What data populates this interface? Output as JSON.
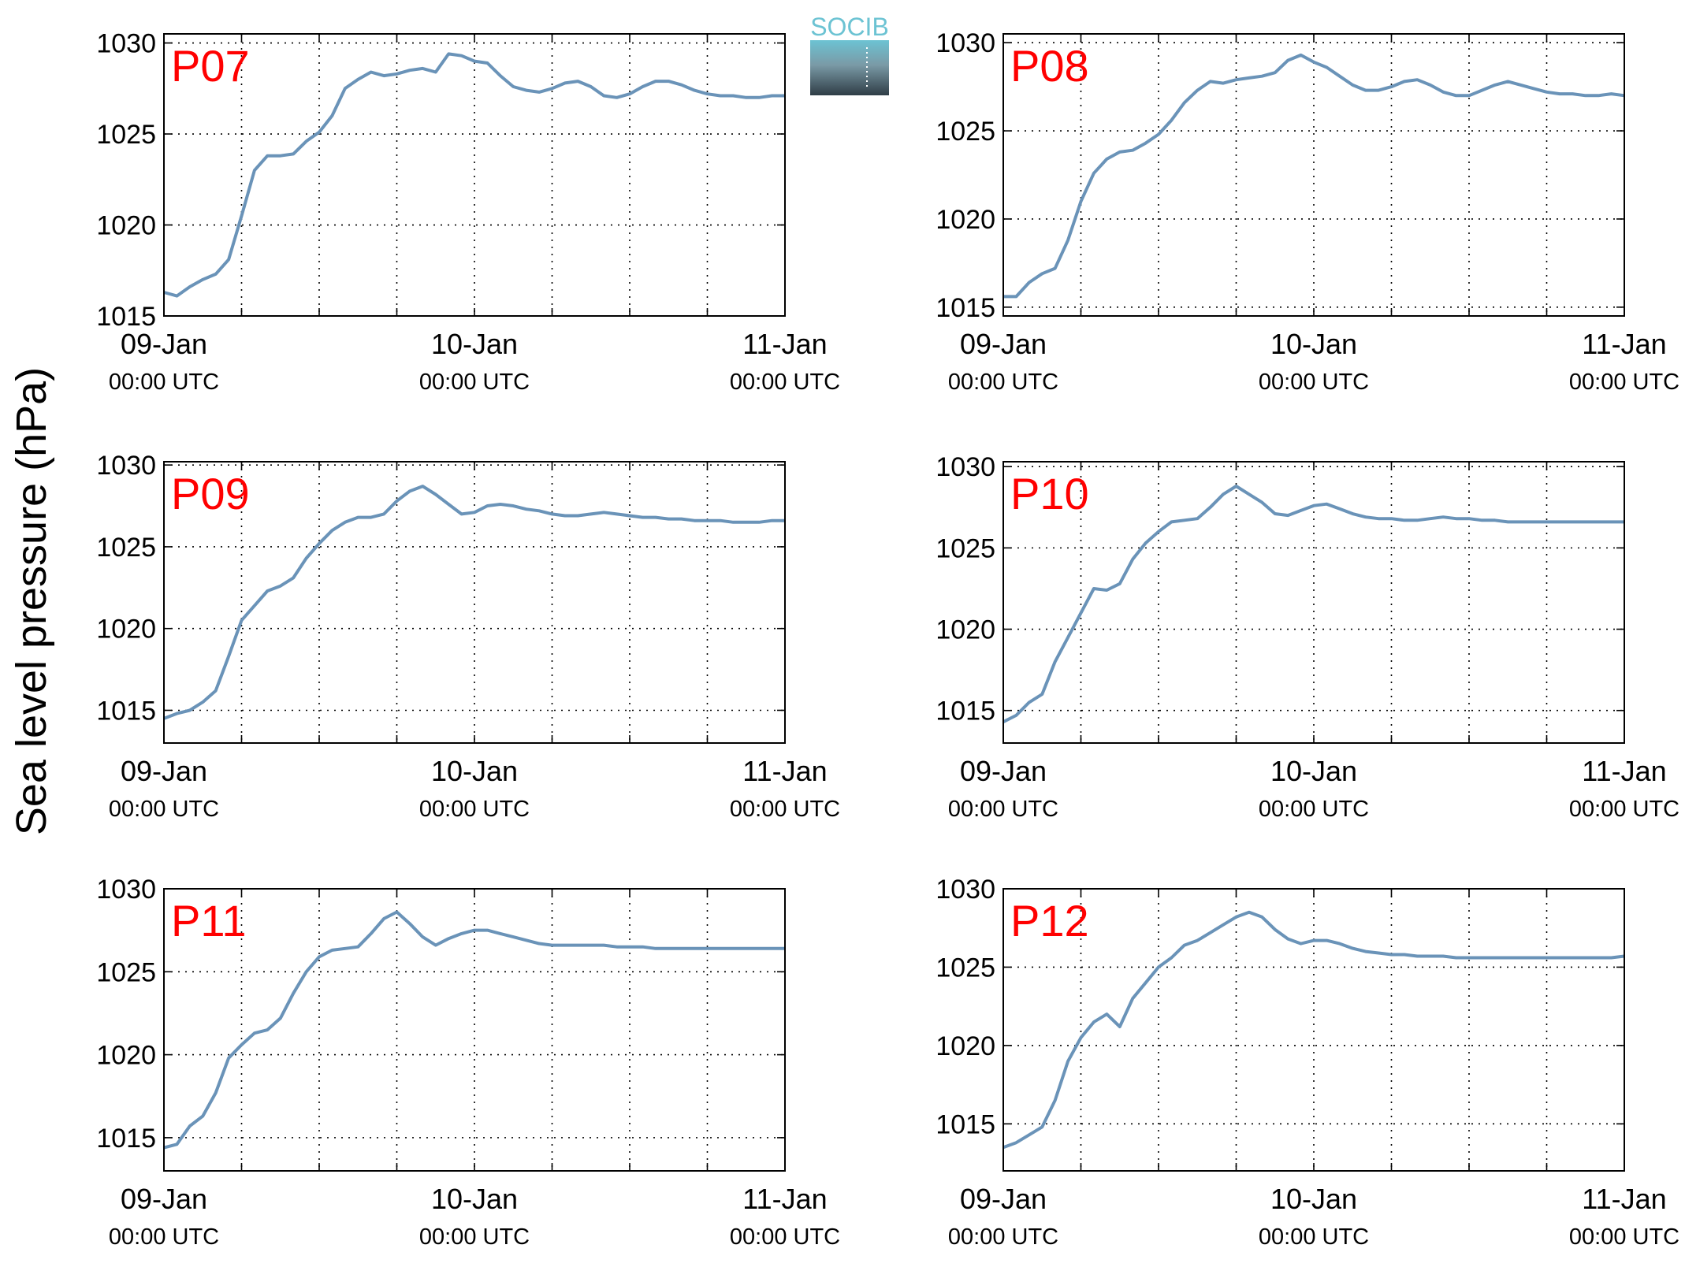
{
  "figure": {
    "ylabel": "Sea level pressure (hPa)",
    "logo_text": "SOCIB",
    "colors": {
      "line": "#6a93b8",
      "panel_label": "#ff0000",
      "axis": "#000000",
      "logo_top": "#6cc3d3",
      "logo_bottom": "#2f3d46"
    }
  },
  "chart_data": [
    {
      "type": "line",
      "label": "P07",
      "xticks": [
        {
          "date": "09-Jan",
          "time": "00:00 UTC"
        },
        {
          "date": "10-Jan",
          "time": "00:00 UTC"
        },
        {
          "date": "11-Jan",
          "time": "00:00 UTC"
        }
      ],
      "yticks": [
        1015,
        1020,
        1025,
        1030
      ],
      "ylim": [
        1015,
        1030.5
      ],
      "xlim_hours": [
        0,
        48
      ],
      "grid": true,
      "series": [
        {
          "x": [
            0,
            1,
            2,
            3,
            4,
            5,
            6,
            7,
            8,
            9,
            10,
            11,
            12,
            13,
            14,
            15,
            16,
            17,
            18,
            19,
            20,
            21,
            22,
            23,
            24,
            25,
            26,
            27,
            28,
            29,
            30,
            31,
            32,
            33,
            34,
            35,
            36,
            37,
            38,
            39,
            40,
            41,
            42,
            43,
            44,
            45,
            46,
            47,
            48
          ],
          "y": [
            1016.3,
            1016.1,
            1016.6,
            1017.0,
            1017.3,
            1018.1,
            1020.5,
            1023.0,
            1023.8,
            1023.8,
            1023.9,
            1024.6,
            1025.1,
            1026.0,
            1027.5,
            1028.0,
            1028.4,
            1028.2,
            1028.3,
            1028.5,
            1028.6,
            1028.4,
            1029.4,
            1029.3,
            1029.0,
            1028.9,
            1028.2,
            1027.6,
            1027.4,
            1027.3,
            1027.5,
            1027.8,
            1027.9,
            1027.6,
            1027.1,
            1027.0,
            1027.2,
            1027.6,
            1027.9,
            1027.9,
            1027.7,
            1027.4,
            1027.2,
            1027.1,
            1027.1,
            1027.0,
            1027.0,
            1027.1,
            1027.1
          ]
        }
      ]
    },
    {
      "type": "line",
      "label": "P08",
      "xticks": [
        {
          "date": "09-Jan",
          "time": "00:00 UTC"
        },
        {
          "date": "10-Jan",
          "time": "00:00 UTC"
        },
        {
          "date": "11-Jan",
          "time": "00:00 UTC"
        }
      ],
      "yticks": [
        1015,
        1020,
        1025,
        1030
      ],
      "ylim": [
        1014.5,
        1030.5
      ],
      "xlim_hours": [
        0,
        48
      ],
      "grid": true,
      "series": [
        {
          "x": [
            0,
            1,
            2,
            3,
            4,
            5,
            6,
            7,
            8,
            9,
            10,
            11,
            12,
            13,
            14,
            15,
            16,
            17,
            18,
            19,
            20,
            21,
            22,
            23,
            24,
            25,
            26,
            27,
            28,
            29,
            30,
            31,
            32,
            33,
            34,
            35,
            36,
            37,
            38,
            39,
            40,
            41,
            42,
            43,
            44,
            45,
            46,
            47,
            48
          ],
          "y": [
            1015.6,
            1015.6,
            1016.4,
            1016.9,
            1017.2,
            1018.8,
            1021.0,
            1022.6,
            1023.4,
            1023.8,
            1023.9,
            1024.3,
            1024.8,
            1025.6,
            1026.6,
            1027.3,
            1027.8,
            1027.7,
            1027.9,
            1028.0,
            1028.1,
            1028.3,
            1029.0,
            1029.3,
            1028.9,
            1028.6,
            1028.1,
            1027.6,
            1027.3,
            1027.3,
            1027.5,
            1027.8,
            1027.9,
            1027.6,
            1027.2,
            1027.0,
            1027.0,
            1027.3,
            1027.6,
            1027.8,
            1027.6,
            1027.4,
            1027.2,
            1027.1,
            1027.1,
            1027.0,
            1027.0,
            1027.1,
            1027.0
          ]
        }
      ]
    },
    {
      "type": "line",
      "label": "P09",
      "xticks": [
        {
          "date": "09-Jan",
          "time": "00:00 UTC"
        },
        {
          "date": "10-Jan",
          "time": "00:00 UTC"
        },
        {
          "date": "11-Jan",
          "time": "00:00 UTC"
        }
      ],
      "yticks": [
        1015,
        1020,
        1025,
        1030
      ],
      "ylim": [
        1013.0,
        1030.2
      ],
      "xlim_hours": [
        0,
        48
      ],
      "grid": true,
      "series": [
        {
          "x": [
            0,
            1,
            2,
            3,
            4,
            5,
            6,
            7,
            8,
            9,
            10,
            11,
            12,
            13,
            14,
            15,
            16,
            17,
            18,
            19,
            20,
            21,
            22,
            23,
            24,
            25,
            26,
            27,
            28,
            29,
            30,
            31,
            32,
            33,
            34,
            35,
            36,
            37,
            38,
            39,
            40,
            41,
            42,
            43,
            44,
            45,
            46,
            47,
            48
          ],
          "y": [
            1014.5,
            1014.8,
            1015.0,
            1015.5,
            1016.2,
            1018.3,
            1020.5,
            1021.4,
            1022.3,
            1022.6,
            1023.1,
            1024.3,
            1025.2,
            1026.0,
            1026.5,
            1026.8,
            1026.8,
            1027.0,
            1027.8,
            1028.4,
            1028.7,
            1028.2,
            1027.6,
            1027.0,
            1027.1,
            1027.5,
            1027.6,
            1027.5,
            1027.3,
            1027.2,
            1027.0,
            1026.9,
            1026.9,
            1027.0,
            1027.1,
            1027.0,
            1026.9,
            1026.8,
            1026.8,
            1026.7,
            1026.7,
            1026.6,
            1026.6,
            1026.6,
            1026.5,
            1026.5,
            1026.5,
            1026.6,
            1026.6
          ]
        }
      ]
    },
    {
      "type": "line",
      "label": "P10",
      "xticks": [
        {
          "date": "09-Jan",
          "time": "00:00 UTC"
        },
        {
          "date": "10-Jan",
          "time": "00:00 UTC"
        },
        {
          "date": "11-Jan",
          "time": "00:00 UTC"
        }
      ],
      "yticks": [
        1015,
        1020,
        1025,
        1030
      ],
      "ylim": [
        1013.0,
        1030.3
      ],
      "xlim_hours": [
        0,
        48
      ],
      "grid": true,
      "series": [
        {
          "x": [
            0,
            1,
            2,
            3,
            4,
            5,
            6,
            7,
            8,
            9,
            10,
            11,
            12,
            13,
            14,
            15,
            16,
            17,
            18,
            19,
            20,
            21,
            22,
            23,
            24,
            25,
            26,
            27,
            28,
            29,
            30,
            31,
            32,
            33,
            34,
            35,
            36,
            37,
            38,
            39,
            40,
            41,
            42,
            43,
            44,
            45,
            46,
            47,
            48
          ],
          "y": [
            1014.3,
            1014.7,
            1015.5,
            1016.0,
            1018.0,
            1019.5,
            1021.0,
            1022.5,
            1022.4,
            1022.8,
            1024.3,
            1025.3,
            1026.0,
            1026.6,
            1026.7,
            1026.8,
            1027.5,
            1028.3,
            1028.8,
            1028.3,
            1027.8,
            1027.1,
            1027.0,
            1027.3,
            1027.6,
            1027.7,
            1027.4,
            1027.1,
            1026.9,
            1026.8,
            1026.8,
            1026.7,
            1026.7,
            1026.8,
            1026.9,
            1026.8,
            1026.8,
            1026.7,
            1026.7,
            1026.6,
            1026.6,
            1026.6,
            1026.6,
            1026.6,
            1026.6,
            1026.6,
            1026.6,
            1026.6,
            1026.6
          ]
        }
      ]
    },
    {
      "type": "line",
      "label": "P11",
      "xticks": [
        {
          "date": "09-Jan",
          "time": "00:00 UTC"
        },
        {
          "date": "10-Jan",
          "time": "00:00 UTC"
        },
        {
          "date": "11-Jan",
          "time": "00:00 UTC"
        }
      ],
      "yticks": [
        1015,
        1020,
        1025,
        1030
      ],
      "ylim": [
        1013.0,
        1030.0
      ],
      "xlim_hours": [
        0,
        48
      ],
      "grid": true,
      "series": [
        {
          "x": [
            0,
            1,
            2,
            3,
            4,
            5,
            6,
            7,
            8,
            9,
            10,
            11,
            12,
            13,
            14,
            15,
            16,
            17,
            18,
            19,
            20,
            21,
            22,
            23,
            24,
            25,
            26,
            27,
            28,
            29,
            30,
            31,
            32,
            33,
            34,
            35,
            36,
            37,
            38,
            39,
            40,
            41,
            42,
            43,
            44,
            45,
            46,
            47,
            48
          ],
          "y": [
            1014.4,
            1014.6,
            1015.7,
            1016.3,
            1017.7,
            1019.8,
            1020.6,
            1021.3,
            1021.5,
            1022.2,
            1023.7,
            1025.0,
            1025.9,
            1026.3,
            1026.4,
            1026.5,
            1027.3,
            1028.2,
            1028.6,
            1027.9,
            1027.1,
            1026.6,
            1027.0,
            1027.3,
            1027.5,
            1027.5,
            1027.3,
            1027.1,
            1026.9,
            1026.7,
            1026.6,
            1026.6,
            1026.6,
            1026.6,
            1026.6,
            1026.5,
            1026.5,
            1026.5,
            1026.4,
            1026.4,
            1026.4,
            1026.4,
            1026.4,
            1026.4,
            1026.4,
            1026.4,
            1026.4,
            1026.4,
            1026.4
          ]
        }
      ]
    },
    {
      "type": "line",
      "label": "P12",
      "xticks": [
        {
          "date": "09-Jan",
          "time": "00:00 UTC"
        },
        {
          "date": "10-Jan",
          "time": "00:00 UTC"
        },
        {
          "date": "11-Jan",
          "time": "00:00 UTC"
        }
      ],
      "yticks": [
        1015,
        1020,
        1025,
        1030
      ],
      "ylim": [
        1012.0,
        1030.0
      ],
      "xlim_hours": [
        0,
        48
      ],
      "grid": true,
      "series": [
        {
          "x": [
            0,
            1,
            2,
            3,
            4,
            5,
            6,
            7,
            8,
            9,
            10,
            11,
            12,
            13,
            14,
            15,
            16,
            17,
            18,
            19,
            20,
            21,
            22,
            23,
            24,
            25,
            26,
            27,
            28,
            29,
            30,
            31,
            32,
            33,
            34,
            35,
            36,
            37,
            38,
            39,
            40,
            41,
            42,
            43,
            44,
            45,
            46,
            47,
            48
          ],
          "y": [
            1013.5,
            1013.8,
            1014.3,
            1014.8,
            1016.5,
            1019.0,
            1020.5,
            1021.5,
            1022.0,
            1021.2,
            1023.0,
            1024.0,
            1025.0,
            1025.6,
            1026.4,
            1026.7,
            1027.2,
            1027.7,
            1028.2,
            1028.5,
            1028.2,
            1027.4,
            1026.8,
            1026.5,
            1026.7,
            1026.7,
            1026.5,
            1026.2,
            1026.0,
            1025.9,
            1025.8,
            1025.8,
            1025.7,
            1025.7,
            1025.7,
            1025.6,
            1025.6,
            1025.6,
            1025.6,
            1025.6,
            1025.6,
            1025.6,
            1025.6,
            1025.6,
            1025.6,
            1025.6,
            1025.6,
            1025.6,
            1025.7
          ]
        }
      ]
    }
  ]
}
